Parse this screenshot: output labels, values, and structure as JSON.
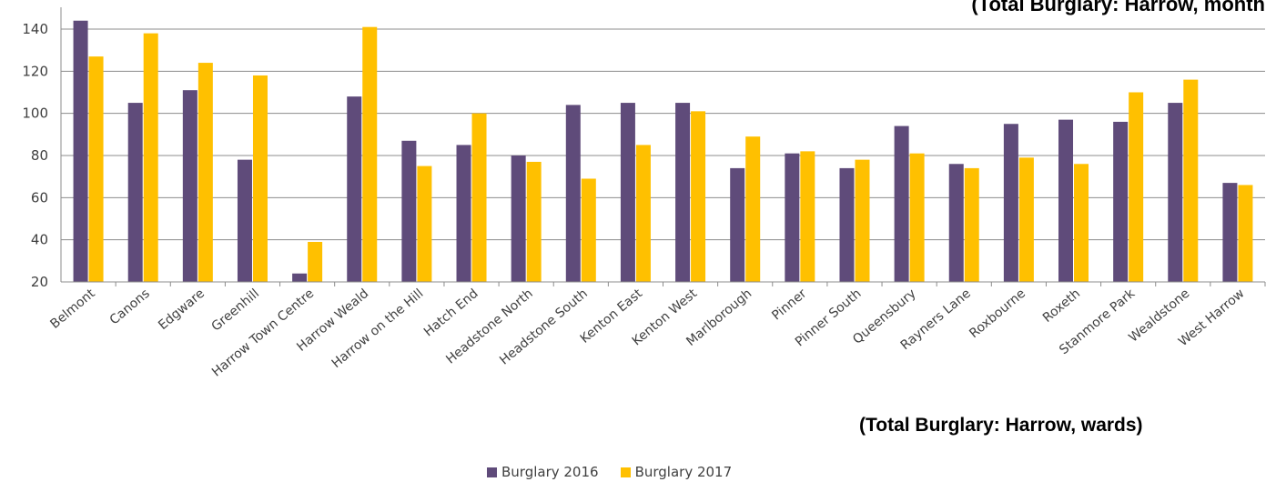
{
  "titles": {
    "top": "(Total Burglary: Harrow, month",
    "bottom": "(Total Burglary: Harrow, wards)"
  },
  "colors": {
    "series_2016": "#5f4b7a",
    "series_2017": "#ffc000",
    "grid": "#8c8c8c",
    "axis_text": "#404040"
  },
  "chart_data": {
    "type": "bar",
    "title": "(Total Burglary: Harrow, wards)",
    "xlabel": "",
    "ylabel": "",
    "ylim": [
      20,
      150
    ],
    "yticks": [
      20,
      40,
      60,
      80,
      100,
      120,
      140
    ],
    "grid": true,
    "legend_position": "bottom",
    "categories": [
      "Belmont",
      "Canons",
      "Edgware",
      "Greenhill",
      "Harrow Town Centre",
      "Harrow Weald",
      "Harrow on the Hill",
      "Hatch End",
      "Headstone North",
      "Headstone South",
      "Kenton East",
      "Kenton West",
      "Marlborough",
      "Pinner",
      "Pinner South",
      "Queensbury",
      "Rayners Lane",
      "Roxbourne",
      "Roxeth",
      "Stanmore Park",
      "Wealdstone",
      "West Harrow"
    ],
    "series": [
      {
        "name": "Burglary 2016",
        "values": [
          144,
          105,
          111,
          78,
          24,
          108,
          87,
          85,
          80,
          104,
          105,
          105,
          74,
          81,
          74,
          94,
          76,
          95,
          97,
          96,
          105,
          67
        ]
      },
      {
        "name": "Burglary 2017",
        "values": [
          127,
          138,
          124,
          118,
          39,
          141,
          75,
          100,
          77,
          69,
          85,
          101,
          89,
          82,
          78,
          81,
          74,
          79,
          76,
          110,
          116,
          66
        ]
      }
    ]
  }
}
